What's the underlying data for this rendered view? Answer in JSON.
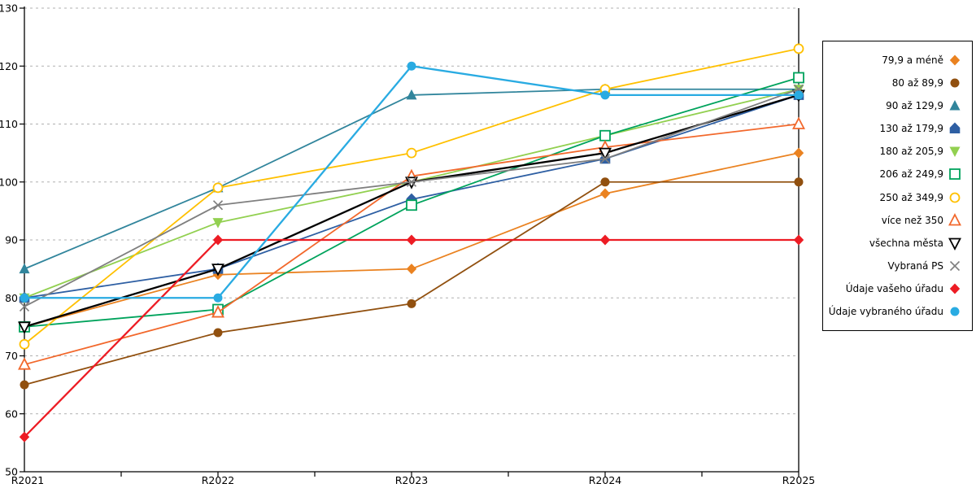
{
  "chart_data": {
    "type": "line",
    "title": "",
    "xlabel": "",
    "ylabel": "",
    "x_categories": [
      "R2021",
      "R2022",
      "R2023",
      "R2024",
      "R2025"
    ],
    "y_axis": {
      "min": 50,
      "max": 130,
      "tick_step": 10,
      "tick_labels": [
        "50",
        "60",
        "70",
        "80",
        "90",
        "100",
        "110",
        "120",
        "130"
      ]
    },
    "grid": {
      "horizontal": true,
      "style": "dashed",
      "color": "#b0b0b0"
    },
    "legend_position": "right",
    "series": [
      {
        "name": "79,9 a méně",
        "color": "#EA8220",
        "marker": "diamond",
        "fill": true,
        "width": 1.8,
        "values": [
          75,
          84,
          85,
          98,
          105
        ]
      },
      {
        "name": "80 až 89,9",
        "color": "#91500F",
        "marker": "circle",
        "fill": true,
        "width": 1.8,
        "values": [
          65,
          74,
          79,
          100,
          100
        ]
      },
      {
        "name": "90 až 129,9",
        "color": "#31859C",
        "marker": "triangle-up",
        "fill": true,
        "width": 1.8,
        "values": [
          85,
          99,
          115,
          116,
          116
        ]
      },
      {
        "name": "130 až 179,9",
        "color": "#2E5FA3",
        "marker": "pentagon",
        "fill": true,
        "width": 1.8,
        "values": [
          80,
          85,
          97,
          104,
          115
        ]
      },
      {
        "name": "180 až 205,9",
        "color": "#92D050",
        "marker": "triangle-down",
        "fill": true,
        "width": 1.8,
        "values": [
          80,
          93,
          100,
          108,
          116
        ]
      },
      {
        "name": "206 až 249,9",
        "color": "#00A35C",
        "marker": "square",
        "fill": false,
        "width": 1.8,
        "values": [
          75,
          78,
          96,
          108,
          118
        ]
      },
      {
        "name": "250 až 349,9",
        "color": "#FFC000",
        "marker": "circle",
        "fill": false,
        "width": 1.8,
        "values": [
          72,
          99,
          105,
          116,
          123
        ]
      },
      {
        "name": "více než 350",
        "color": "#F2682C",
        "marker": "triangle-up",
        "fill": false,
        "width": 1.8,
        "values": [
          68.5,
          77.5,
          101,
          106,
          110
        ]
      },
      {
        "name": "všechna města",
        "color": "#000000",
        "marker": "triangle-down",
        "fill": false,
        "width": 2.3,
        "values": [
          75,
          85,
          100,
          105,
          115
        ]
      },
      {
        "name": "Vybraná PS",
        "color": "#7F7F7F",
        "marker": "x",
        "fill": false,
        "width": 1.8,
        "values": [
          78.5,
          96,
          100,
          104,
          116
        ]
      },
      {
        "name": "Údaje vašeho úřadu",
        "color": "#ED1C24",
        "marker": "diamond",
        "fill": true,
        "width": 2.3,
        "values": [
          56,
          90,
          90,
          90,
          90
        ]
      },
      {
        "name": "Údaje vybraného úřadu",
        "color": "#29ABE2",
        "marker": "circle",
        "fill": true,
        "width": 2.3,
        "values": [
          80,
          80,
          120,
          115,
          115
        ]
      }
    ]
  }
}
